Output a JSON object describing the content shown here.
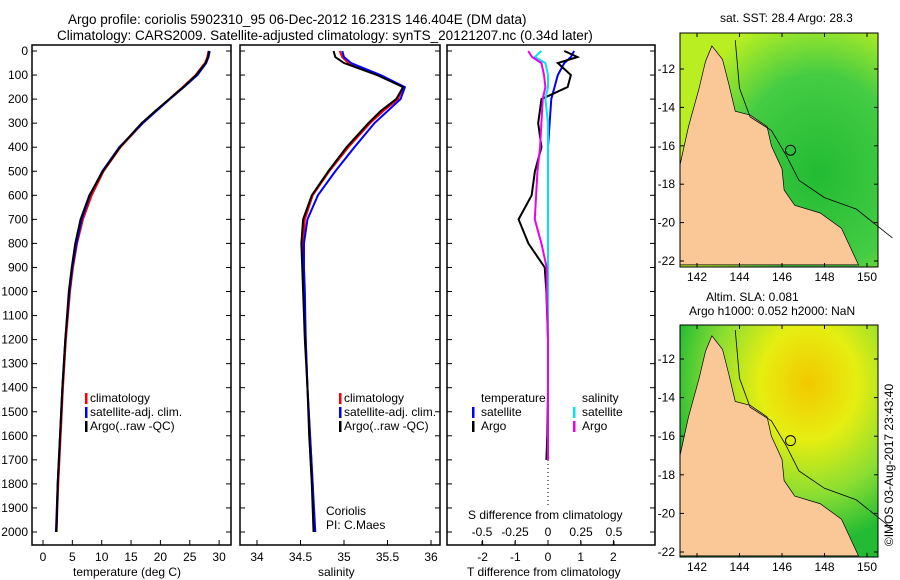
{
  "header": {
    "title_line1": "Argo profile: coriolis 5902310_95 06-Dec-2012 16.231S 146.404E (DM data)",
    "title_line2": "Climatology: CARS2009. Satellite-adjusted climatology: synTS_20121207.nc (0.34d later)"
  },
  "colors": {
    "climatology": "#ff0000",
    "satellite": "#0000ff",
    "argo": "#000000",
    "sal_satellite": "#00e5ee",
    "sal_argo": "#ee00ee",
    "land": "#f9c896"
  },
  "legend": {
    "climatology": "climatology",
    "satellite": "satellite-adj. clim.",
    "argo": "Argo(..raw -QC)"
  },
  "diff_legend": {
    "temperature": "temperature",
    "salinity": "salinity",
    "satellite": "satellite",
    "argo": "Argo"
  },
  "credits": {
    "dac": "Coriolis",
    "pi": "PI: C.Maes"
  },
  "map1": {
    "title": "sat. SST: 28.4 Argo: 28.3",
    "lon_ticks": [
      "142",
      "144",
      "146",
      "148",
      "150"
    ],
    "lat_ticks": [
      "-12",
      "-14",
      "-16",
      "-18",
      "-20",
      "-22"
    ]
  },
  "map2": {
    "title_line1": "Altim. SLA: 0.081",
    "title_line2": "Argo h1000: 0.052 h2000: NaN",
    "lon_ticks": [
      "142",
      "144",
      "146",
      "148",
      "150"
    ],
    "lat_ticks": [
      "-12",
      "-14",
      "-16",
      "-18",
      "-20",
      "-22"
    ]
  },
  "footer": {
    "stamp": "©IMOS 03-Aug-2017 23:43:40"
  },
  "chart_data": [
    {
      "type": "line",
      "xlabel": "temperature (deg C)",
      "ylabel": "",
      "xlim": [
        -2,
        32
      ],
      "ylim": [
        2070,
        0
      ],
      "x_ticks": [
        "0",
        "5",
        "10",
        "15",
        "20",
        "25",
        "30"
      ],
      "y_ticks": [
        "0",
        "100",
        "200",
        "300",
        "400",
        "500",
        "600",
        "700",
        "800",
        "900",
        "1000",
        "1100",
        "1200",
        "1300",
        "1400",
        "1500",
        "1600",
        "1700",
        "1800",
        "1900",
        "2000"
      ],
      "depth": [
        0,
        25,
        50,
        100,
        150,
        200,
        250,
        300,
        400,
        500,
        600,
        700,
        800,
        900,
        1000,
        1200,
        1400,
        1600,
        1800,
        2000
      ],
      "series": [
        {
          "name": "climatology",
          "values": [
            28.2,
            28.0,
            27.6,
            26.0,
            23.8,
            21.5,
            19.2,
            17.0,
            13.2,
            10.3,
            8.3,
            6.8,
            5.8,
            5.1,
            4.6,
            3.9,
            3.4,
            3.0,
            2.6,
            2.3
          ]
        },
        {
          "name": "satellite-adj. clim.",
          "values": [
            28.4,
            28.2,
            27.8,
            26.3,
            24.0,
            21.6,
            19.3,
            17.0,
            13.0,
            10.1,
            8.0,
            6.6,
            5.7,
            5.0,
            4.5,
            3.8,
            3.3,
            2.9,
            2.5,
            2.2
          ]
        },
        {
          "name": "Argo(..raw -QC)",
          "values": [
            28.3,
            28.1,
            27.7,
            26.1,
            23.9,
            21.5,
            19.1,
            16.8,
            13.1,
            10.2,
            7.9,
            6.4,
            5.5,
            4.9,
            4.4,
            3.8,
            3.3,
            2.9,
            2.5,
            2.3
          ]
        }
      ]
    },
    {
      "type": "line",
      "xlabel": "salinity",
      "xlim": [
        33.8,
        36.1
      ],
      "ylim": [
        2070,
        0
      ],
      "x_ticks": [
        "34",
        "34.5",
        "35",
        "35.5",
        "36"
      ],
      "depth": [
        0,
        25,
        50,
        100,
        150,
        200,
        250,
        300,
        400,
        500,
        600,
        700,
        800,
        900,
        1000,
        1200,
        1400,
        1600,
        1800,
        2000
      ],
      "series": [
        {
          "name": "climatology",
          "values": [
            34.95,
            34.98,
            35.05,
            35.4,
            35.68,
            35.62,
            35.45,
            35.3,
            35.05,
            34.83,
            34.64,
            34.55,
            34.53,
            34.53,
            34.54,
            34.56,
            34.58,
            34.61,
            34.64,
            34.66
          ]
        },
        {
          "name": "satellite-adj. clim.",
          "values": [
            34.98,
            35.0,
            35.08,
            35.42,
            35.7,
            35.65,
            35.5,
            35.35,
            35.12,
            34.9,
            34.7,
            34.58,
            34.54,
            34.54,
            34.55,
            34.56,
            34.58,
            34.61,
            34.64,
            34.67
          ]
        },
        {
          "name": "Argo(..raw -QC)",
          "values": [
            34.88,
            34.9,
            35.0,
            35.38,
            35.68,
            35.6,
            35.42,
            35.28,
            35.03,
            34.82,
            34.63,
            34.53,
            34.51,
            34.52,
            34.53,
            34.55,
            34.58,
            34.6,
            34.63,
            34.65
          ]
        }
      ]
    },
    {
      "type": "line",
      "xlabel": "T difference from climatology",
      "x2label": "S difference from climatology",
      "xlim": [
        -3,
        3
      ],
      "x2lim": [
        -0.75,
        0.75
      ],
      "ylim": [
        2070,
        0
      ],
      "x_ticks": [
        "-2",
        "-1",
        "0",
        "1",
        "2"
      ],
      "x2_ticks": [
        "-0.5",
        "-0.25",
        "0",
        "0.25",
        "0.5"
      ],
      "depth": [
        0,
        25,
        50,
        100,
        150,
        200,
        300,
        400,
        500,
        600,
        700,
        800,
        900,
        1000,
        1200,
        1400,
        1600,
        1700
      ],
      "series": [
        {
          "name": "temperature satellite",
          "axis": "T",
          "values": [
            0.8,
            0.7,
            0.5,
            0.3,
            0.2,
            0.1,
            0.05,
            0.0,
            0.0,
            0.0,
            0.0,
            0.0,
            0.0,
            0.0,
            0.0,
            0.0,
            0.0,
            0.0
          ]
        },
        {
          "name": "temperature Argo",
          "axis": "T",
          "values": [
            0.5,
            0.9,
            0.3,
            0.7,
            0.6,
            -0.2,
            -0.3,
            -0.2,
            -0.4,
            -0.5,
            -0.9,
            -0.6,
            -0.1,
            -0.05,
            0.0,
            0.0,
            -0.02,
            -0.05
          ]
        },
        {
          "name": "salinity satellite",
          "axis": "S",
          "values": [
            -0.05,
            -0.1,
            -0.02,
            0.0,
            0.0,
            -0.02,
            0.0,
            0.0,
            0.0,
            0.0,
            0.0,
            0.0,
            0.0,
            0.0,
            0.0,
            0.0,
            0.0,
            0.0
          ]
        },
        {
          "name": "salinity Argo",
          "axis": "S",
          "values": [
            -0.15,
            -0.12,
            -0.05,
            -0.03,
            -0.02,
            -0.04,
            -0.05,
            -0.06,
            -0.08,
            -0.09,
            -0.1,
            -0.05,
            -0.01,
            -0.01,
            0.0,
            0.0,
            0.0,
            0.0
          ]
        }
      ]
    }
  ]
}
